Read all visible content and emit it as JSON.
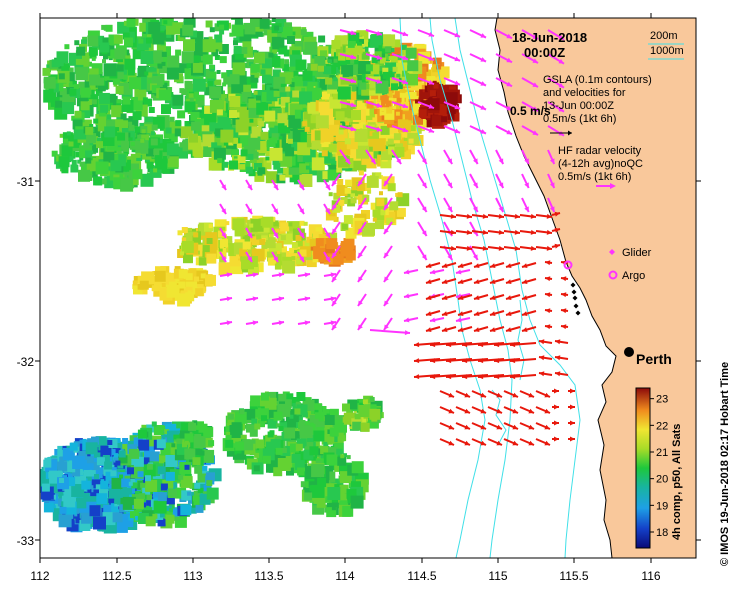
{
  "date_line": "18-Jun-2018",
  "time_line": "00:00Z",
  "bathymetry_legend": [
    "200m",
    "1000m"
  ],
  "gsla_legend": [
    "GSLA (0.1m contours)",
    "and velocities for",
    "13-Jun 00:00Z",
    "0.5m/s (1kt 6h)"
  ],
  "velocity_scale_label": "0.5 m/s",
  "hf_radar_legend": [
    "HF radar velocity",
    "(4-12h avg)noQC",
    "0.5m/s (1kt 6h)"
  ],
  "glider_label": "Glider",
  "argo_label": "Argo",
  "city_label": "Perth",
  "colorbar_label": "4h comp, p50, All Sats",
  "colorbar_ticks": [
    "18",
    "19",
    "20",
    "21",
    "22",
    "23"
  ],
  "colorbar_range": [
    17.4,
    23.4
  ],
  "credit": "© IMOS 19-Jun-2018 02:17 Hobart Time",
  "axes": {
    "x_ticks": [
      "112",
      "112.5",
      "113",
      "113.5",
      "114",
      "114.5",
      "115",
      "115.5",
      "116"
    ],
    "y_ticks": [
      "-31",
      "-32",
      "-33"
    ],
    "lon_range": [
      112,
      116.3
    ],
    "lat_range": [
      -33.1,
      -30.06
    ]
  },
  "colors": {
    "land": "#f9c89b",
    "bathy_line": "#40e0e8",
    "altimetry_arrow": "#ff33ff",
    "radar_arrow": "#e8180c",
    "argo": "#ff33ff",
    "glider": "#ff33ff"
  }
}
